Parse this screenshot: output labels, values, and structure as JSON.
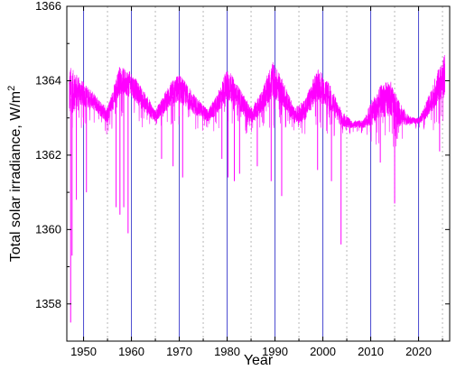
{
  "chart_data": {
    "type": "line",
    "title": "",
    "xlabel": "Year",
    "ylabel": "Total solar irradiance, W/m",
    "ylabel_superscript": "2",
    "xlim": [
      1946.5,
      2026.5
    ],
    "ylim": [
      1357,
      1366
    ],
    "xticks": [
      1950,
      1960,
      1970,
      1980,
      1990,
      2000,
      2010,
      2020
    ],
    "yticks": [
      1358,
      1360,
      1362,
      1364,
      1366
    ],
    "xtick_labels": [
      "1950",
      "1960",
      "1970",
      "1980",
      "1990",
      "2000",
      "2010",
      "2020"
    ],
    "ytick_labels": [
      "1358",
      "1360",
      "1362",
      "1364",
      "1366"
    ],
    "grid": "vertical: solid blue at major ticks, dotted grey at minor ticks",
    "legend": "none",
    "series": [
      {
        "color": "#ff00ff",
        "daily_variability": "dense daily record with downward dips to about 1361 at solar maxima",
        "x": [
          1947,
          1949,
          1952,
          1955,
          1957.5,
          1960,
          1963,
          1965,
          1968,
          1970,
          1973,
          1976,
          1978,
          1980,
          1982,
          1985,
          1987,
          1989.5,
          1992,
          1994,
          1996,
          1999,
          2001.5,
          2004,
          2006,
          2008.5,
          2010,
          2012,
          2014,
          2016,
          2018,
          2020,
          2022,
          2024,
          2025.5
        ],
        "upper": [
          1364.8,
          1364.3,
          1363.8,
          1363.4,
          1364.6,
          1364.4,
          1363.8,
          1363.3,
          1364.1,
          1364.4,
          1363.8,
          1363.3,
          1363.8,
          1364.6,
          1364.1,
          1363.4,
          1363.8,
          1364.8,
          1364.1,
          1363.4,
          1363.6,
          1364.6,
          1364.1,
          1363.3,
          1363.0,
          1363.0,
          1363.6,
          1364.1,
          1364.3,
          1363.6,
          1363.1,
          1363.0,
          1363.7,
          1364.5,
          1365.0
        ],
        "baseline": [
          1363.5,
          1363.6,
          1363.4,
          1363.0,
          1363.9,
          1363.8,
          1363.3,
          1363.0,
          1363.5,
          1363.7,
          1363.3,
          1363.0,
          1363.3,
          1363.8,
          1363.5,
          1363.0,
          1363.3,
          1363.9,
          1363.5,
          1363.0,
          1363.1,
          1363.8,
          1363.4,
          1362.9,
          1362.8,
          1362.8,
          1363.0,
          1363.3,
          1363.4,
          1363.0,
          1362.9,
          1362.9,
          1363.2,
          1363.7,
          1364.0
        ],
        "dips": [
          {
            "x": 1947.3,
            "y": 1357.5
          },
          {
            "x": 1947.6,
            "y": 1359.3
          },
          {
            "x": 1948.5,
            "y": 1360.8
          },
          {
            "x": 1950.6,
            "y": 1361.0
          },
          {
            "x": 1956.8,
            "y": 1360.6
          },
          {
            "x": 1957.6,
            "y": 1360.4
          },
          {
            "x": 1958.4,
            "y": 1360.6
          },
          {
            "x": 1959.3,
            "y": 1359.9
          },
          {
            "x": 1966.3,
            "y": 1361.9
          },
          {
            "x": 1968.7,
            "y": 1361.7
          },
          {
            "x": 1970.7,
            "y": 1361.4
          },
          {
            "x": 1978.9,
            "y": 1361.9
          },
          {
            "x": 1980.2,
            "y": 1361.4
          },
          {
            "x": 1981.5,
            "y": 1361.3
          },
          {
            "x": 1982.6,
            "y": 1361.5
          },
          {
            "x": 1986.3,
            "y": 1361.7
          },
          {
            "x": 1989.2,
            "y": 1361.3
          },
          {
            "x": 1991.4,
            "y": 1360.9
          },
          {
            "x": 1998.9,
            "y": 1361.6
          },
          {
            "x": 2001.8,
            "y": 1361.3
          },
          {
            "x": 2003.8,
            "y": 1359.6
          },
          {
            "x": 2012.0,
            "y": 1361.8
          },
          {
            "x": 2015.0,
            "y": 1360.7
          },
          {
            "x": 2024.4,
            "y": 1362.1
          }
        ]
      }
    ]
  }
}
